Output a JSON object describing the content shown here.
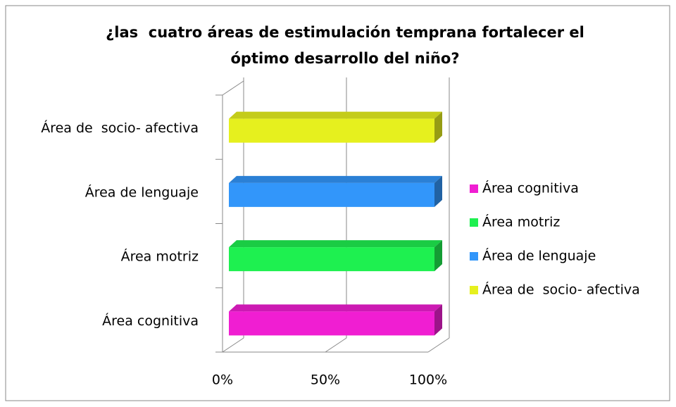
{
  "chart_data": {
    "type": "bar3d",
    "orientation": "horizontal",
    "title": "¿las  cuatro áreas de estimulación temprana fortalecer el óptimo desarrollo del niño?",
    "categories": [
      "Área cognitiva",
      "Área motriz",
      "Área de lenguaje",
      "Área de  socio- afectiva"
    ],
    "values": [
      100,
      100,
      100,
      100
    ],
    "colors": [
      "#f01ed2",
      "#1ef050",
      "#3296fa",
      "#e6f01e"
    ],
    "xlim": [
      0,
      100
    ],
    "xticks": [
      {
        "value": 0,
        "label": "0%"
      },
      {
        "value": 50,
        "label": "50%"
      },
      {
        "value": 100,
        "label": "100%"
      }
    ],
    "grid": true,
    "legend": "right"
  }
}
